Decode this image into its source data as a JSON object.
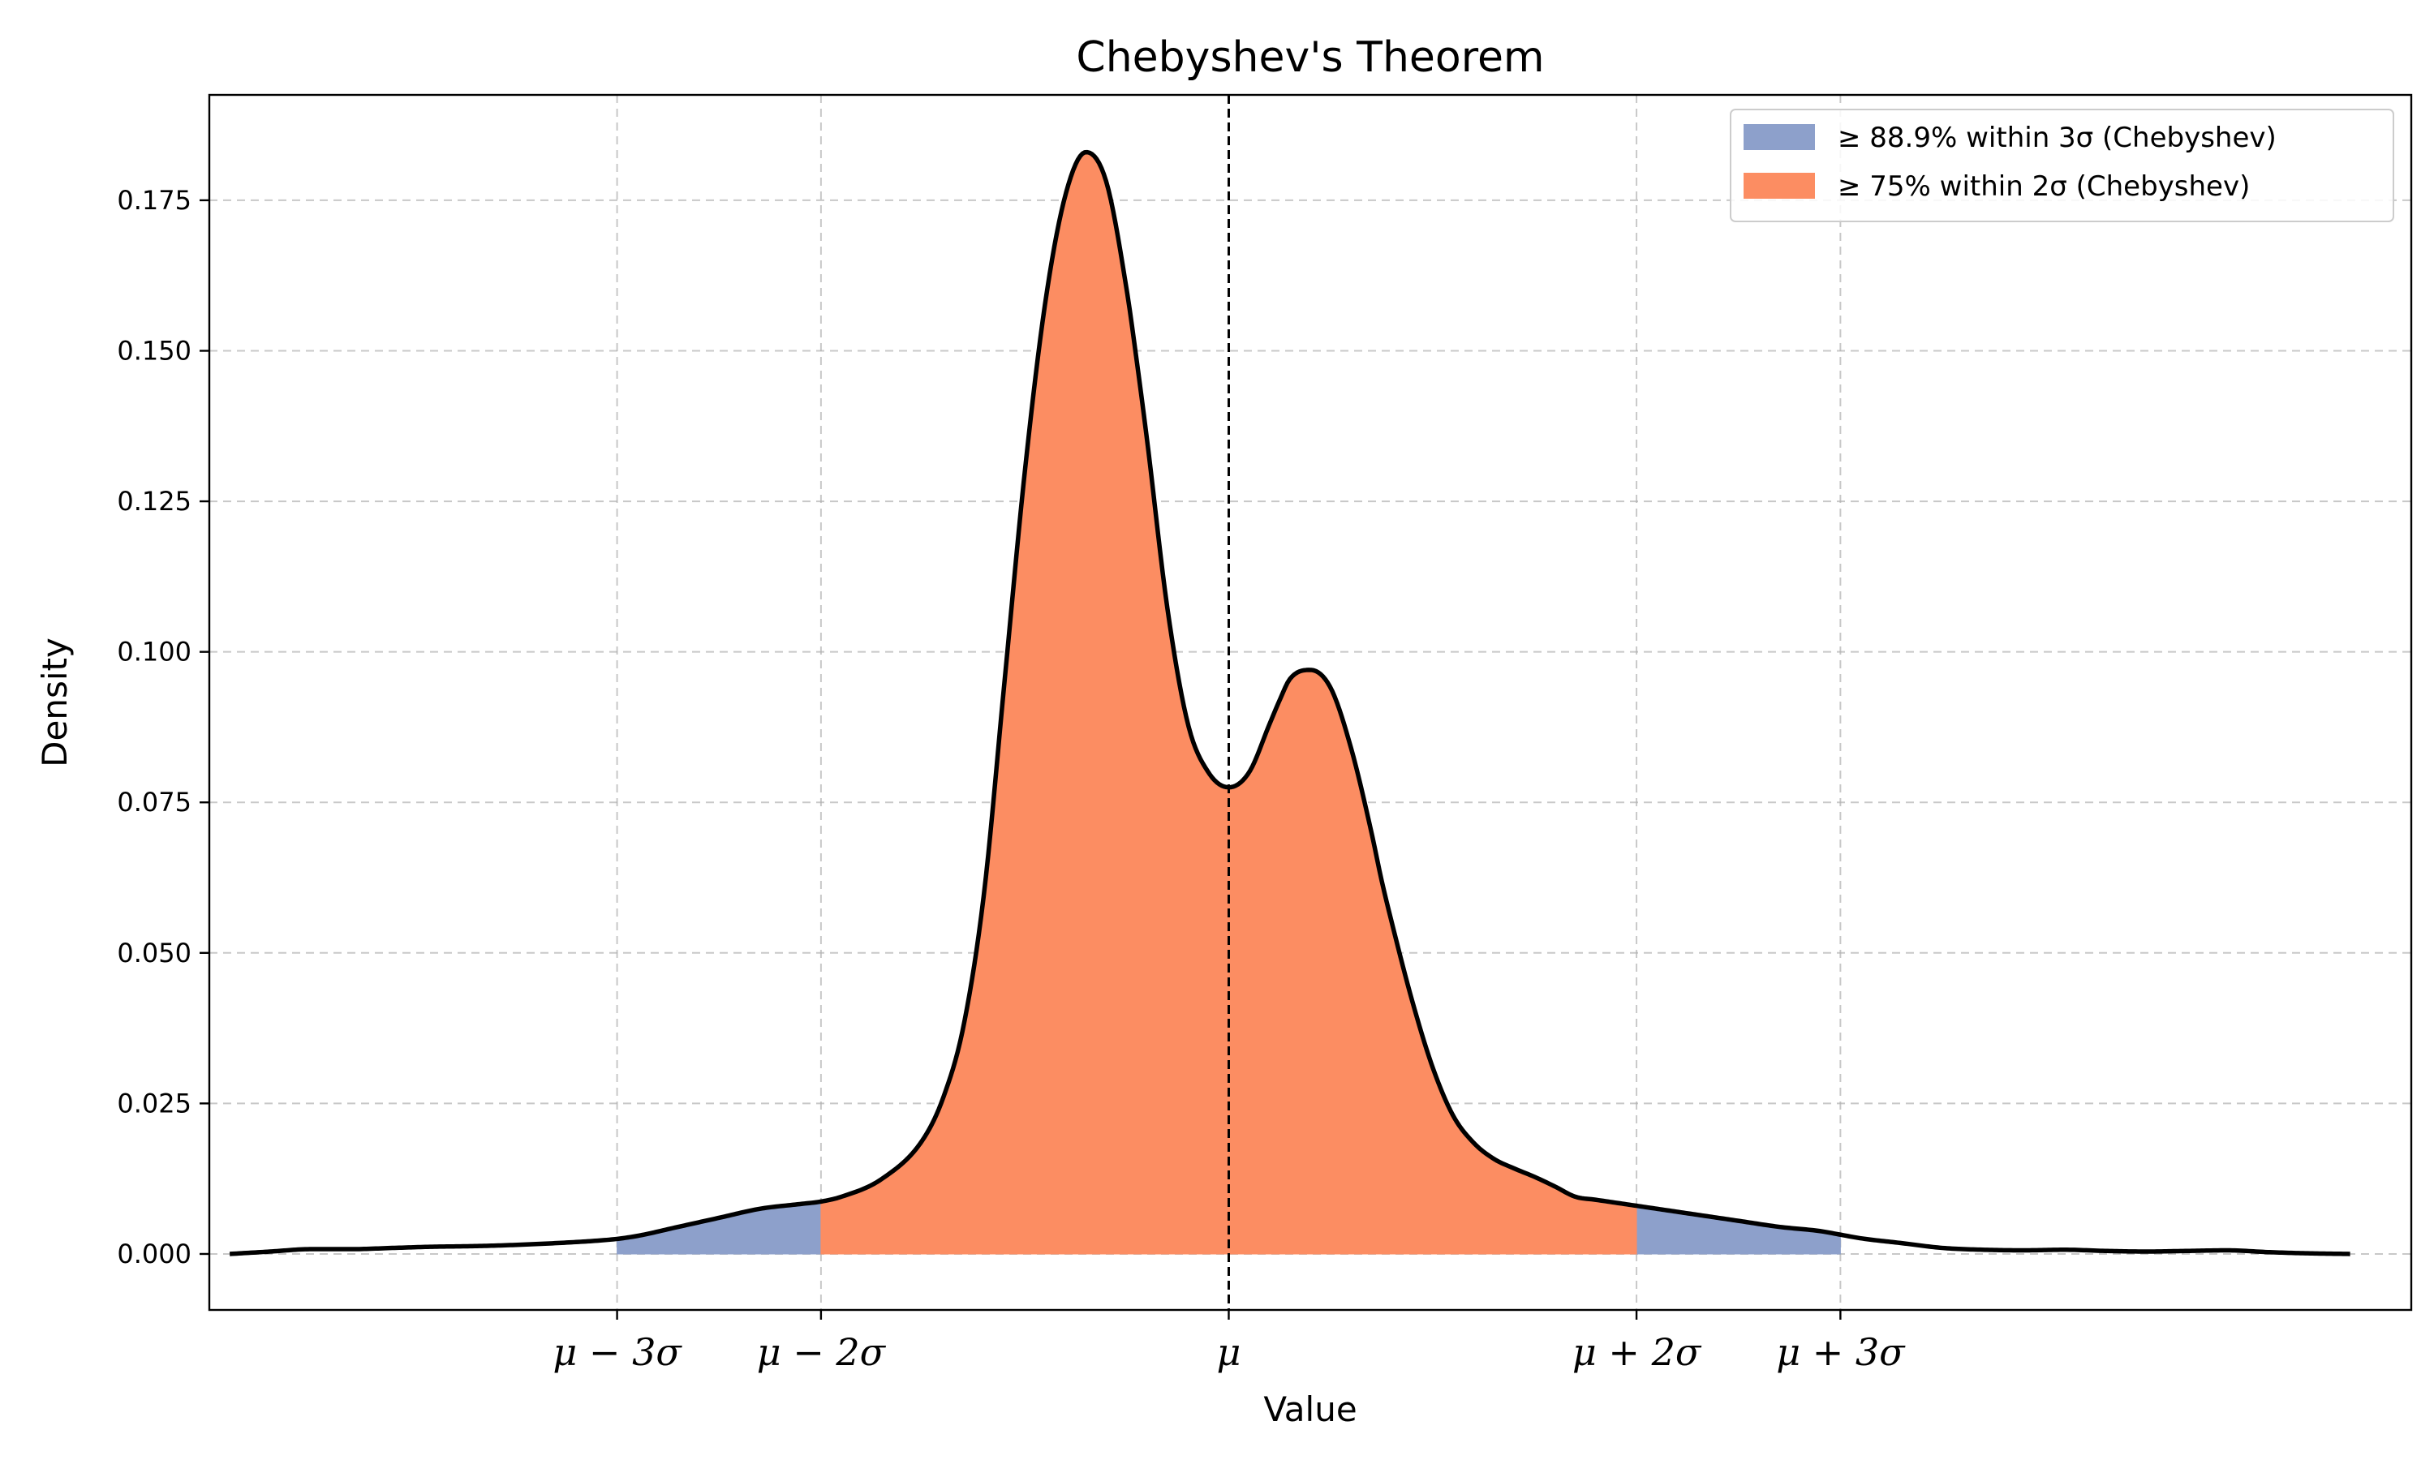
{
  "chart_data": {
    "type": "area",
    "title": "Chebyshev's Theorem",
    "xlabel": "Value",
    "ylabel": "Density",
    "xlim": [
      -5.0,
      5.8
    ],
    "ylim": [
      -0.0093,
      0.1925
    ],
    "mean": 0.0,
    "sigma": 1.0,
    "x_ticks": [
      {
        "value": -3,
        "label": "μ − 3σ"
      },
      {
        "value": -2,
        "label": "μ − 2σ"
      },
      {
        "value": 0,
        "label": "μ"
      },
      {
        "value": 2,
        "label": "μ + 2σ"
      },
      {
        "value": 3,
        "label": "μ + 3σ"
      }
    ],
    "y_ticks": [
      {
        "value": 0.0,
        "label": "0.000"
      },
      {
        "value": 0.025,
        "label": "0.025"
      },
      {
        "value": 0.05,
        "label": "0.050"
      },
      {
        "value": 0.075,
        "label": "0.075"
      },
      {
        "value": 0.1,
        "label": "0.100"
      },
      {
        "value": 0.125,
        "label": "0.125"
      },
      {
        "value": 0.15,
        "label": "0.150"
      },
      {
        "value": 0.175,
        "label": "0.175"
      }
    ],
    "grid": true,
    "legend_position": "top-right",
    "legend": [
      {
        "label": "≥ 88.9% within 3σ (Chebyshev)",
        "color": "#8da0cb"
      },
      {
        "label": "≥ 75% within 2σ (Chebyshev)",
        "color": "#fc8d62"
      }
    ],
    "mean_line": {
      "x": 0.0,
      "style": "dashed",
      "color": "#000000"
    },
    "regions": [
      {
        "from": -3,
        "to": -2,
        "color": "#8da0cb"
      },
      {
        "from": 2,
        "to": 3,
        "color": "#8da0cb"
      },
      {
        "from": -2,
        "to": 2,
        "color": "#fc8d62"
      }
    ],
    "density_curve": {
      "color": "#000000",
      "x": [
        -4.9,
        -4.7,
        -4.5,
        -4.3,
        -4.1,
        -3.9,
        -3.7,
        -3.5,
        -3.3,
        -3.1,
        -3.0,
        -2.9,
        -2.7,
        -2.5,
        -2.3,
        -2.1,
        -2.0,
        -1.9,
        -1.7,
        -1.5,
        -1.4,
        -1.3,
        -1.2,
        -1.1,
        -1.0,
        -0.9,
        -0.8,
        -0.7,
        -0.6,
        -0.5,
        -0.45,
        -0.4,
        -0.3,
        -0.2,
        -0.1,
        0.0,
        0.1,
        0.2,
        0.25,
        0.3,
        0.4,
        0.5,
        0.6,
        0.7,
        0.75,
        0.8,
        0.9,
        1.0,
        1.1,
        1.2,
        1.3,
        1.4,
        1.5,
        1.6,
        1.7,
        1.8,
        1.9,
        2.0,
        2.1,
        2.3,
        2.5,
        2.7,
        2.9,
        3.0,
        3.1,
        3.3,
        3.5,
        3.7,
        3.9,
        4.1,
        4.3,
        4.5,
        4.7,
        4.9,
        5.1,
        5.3,
        5.5
      ],
      "y": [
        0.0,
        0.0004,
        0.0008,
        0.0008,
        0.001,
        0.0012,
        0.0013,
        0.0015,
        0.0018,
        0.0022,
        0.0025,
        0.003,
        0.0045,
        0.006,
        0.0075,
        0.0083,
        0.0087,
        0.0095,
        0.0125,
        0.019,
        0.026,
        0.038,
        0.06,
        0.095,
        0.13,
        0.158,
        0.176,
        0.183,
        0.178,
        0.16,
        0.148,
        0.135,
        0.107,
        0.088,
        0.08,
        0.0775,
        0.08,
        0.088,
        0.092,
        0.0955,
        0.097,
        0.094,
        0.084,
        0.07,
        0.062,
        0.055,
        0.042,
        0.031,
        0.023,
        0.0185,
        0.0158,
        0.0142,
        0.0128,
        0.0112,
        0.0095,
        0.009,
        0.0085,
        0.008,
        0.0075,
        0.0065,
        0.0055,
        0.0045,
        0.0038,
        0.0032,
        0.0026,
        0.0018,
        0.001,
        0.0007,
        0.0006,
        0.0007,
        0.0005,
        0.0004,
        0.0005,
        0.0006,
        0.0003,
        0.0001,
        0.0
      ]
    }
  }
}
